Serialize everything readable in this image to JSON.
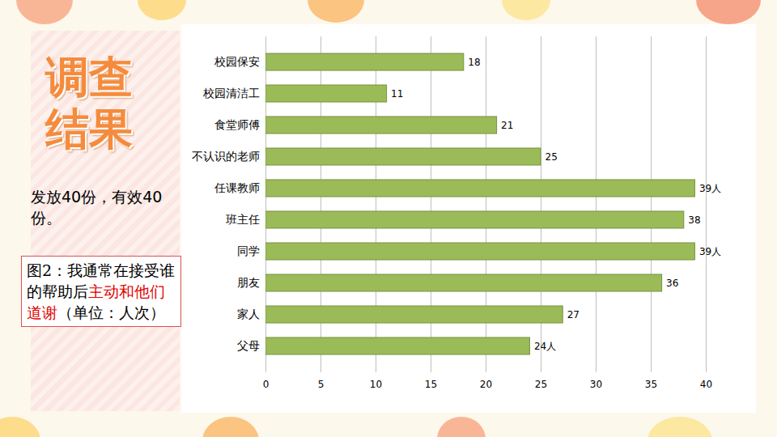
{
  "chart_data": {
    "type": "bar",
    "orientation": "horizontal",
    "title": "调查结果",
    "subtitle": "发放40份，有效40份。",
    "caption": [
      {
        "text": "图2：我通常在接受谁的帮助后"
      },
      {
        "text": "主动和他们道谢",
        "color": "#e00000"
      },
      {
        "text": "（单位：人次）"
      }
    ],
    "categories": [
      "校园保安",
      "校园清洁工",
      "食堂师傅",
      "不认识的老师",
      "任课教师",
      "班主任",
      "同学",
      "朋友",
      "家人",
      "父母"
    ],
    "values": [
      18,
      11,
      21,
      25,
      39,
      38,
      39,
      36,
      27,
      24
    ],
    "value_labels": [
      "18",
      "11",
      "21",
      "25",
      "39人",
      "38",
      "39人",
      "36",
      "27",
      "24人"
    ],
    "data_labels": true,
    "color": "#9bbb59",
    "xlim": [
      0,
      40
    ],
    "xticks": [
      0,
      5,
      10,
      15,
      20,
      25,
      30,
      35,
      40
    ],
    "grid": true
  }
}
